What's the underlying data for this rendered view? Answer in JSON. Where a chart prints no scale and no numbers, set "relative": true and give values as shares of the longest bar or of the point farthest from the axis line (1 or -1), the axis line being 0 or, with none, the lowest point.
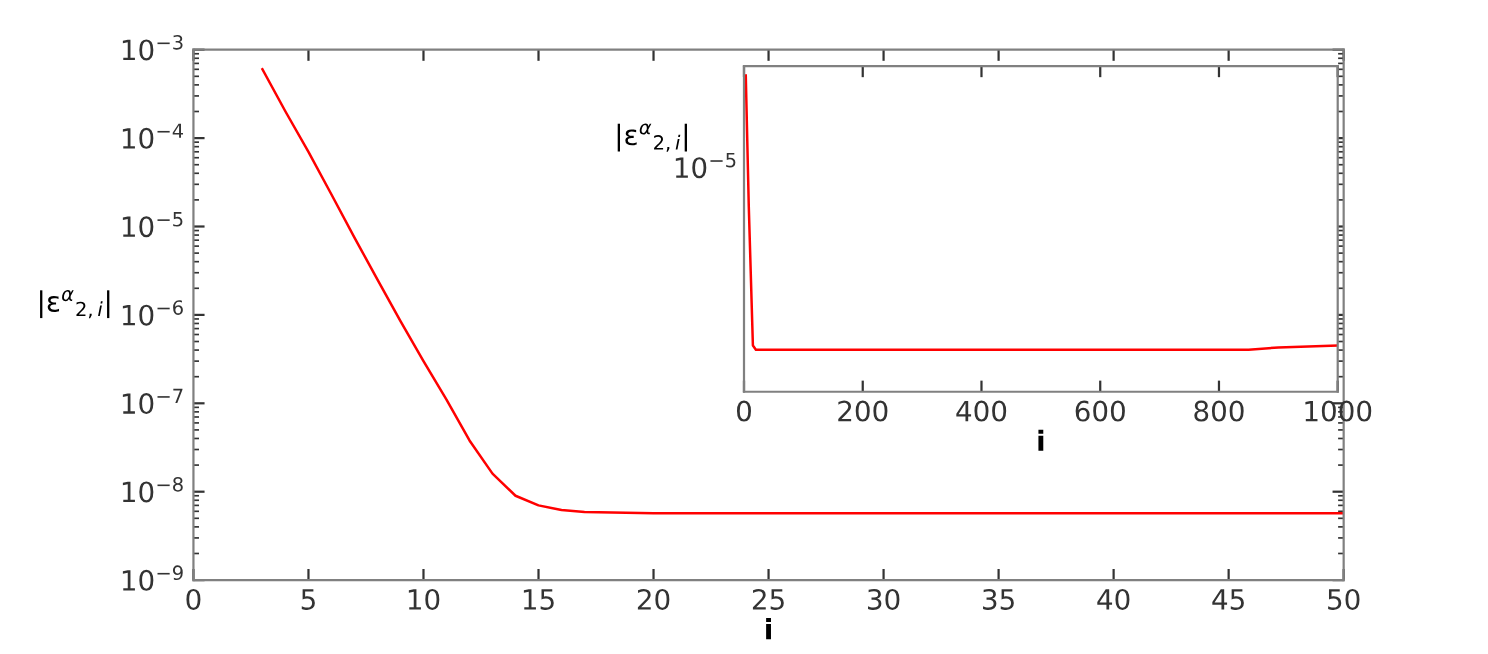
{
  "chart_data": [
    {
      "type": "line",
      "xlabel": "i",
      "ylabel": "|ε$^{α}$$_{2,i}$|",
      "log": "y",
      "xlim": [
        0,
        50
      ],
      "xticks": [
        0,
        5,
        10,
        15,
        20,
        25,
        30,
        35,
        40,
        45,
        50
      ],
      "ylim": [
        1e-09,
        0.001
      ],
      "yticks": [
        {
          "value": 1e-09,
          "label": "10$^{−9}$"
        },
        {
          "value": 1e-08,
          "label": "10$^{−8}$"
        },
        {
          "value": 1e-07,
          "label": "10$^{−7}$"
        },
        {
          "value": 1e-06,
          "label": "10$^{−6}$"
        },
        {
          "value": 1e-05,
          "label": "10$^{−5}$"
        },
        {
          "value": 0.0001,
          "label": "10$^{−4}$"
        },
        {
          "value": 0.001,
          "label": "10$^{−3}$"
        }
      ],
      "series": [
        {
          "color": "#ff0000",
          "x": [
            3,
            4,
            5,
            6,
            7,
            8,
            9,
            10,
            11,
            12,
            13,
            14,
            15,
            16,
            17,
            20,
            30,
            40,
            50
          ],
          "values": [
            0.0006,
            0.0002,
            7e-05,
            2.3e-05,
            7.5e-06,
            2.5e-06,
            8.5e-07,
            3e-07,
            1.1e-07,
            3.8e-08,
            1.6e-08,
            9e-09,
            7e-09,
            6.2e-09,
            5.9e-09,
            5.7e-09,
            5.7e-09,
            5.7e-09,
            5.7e-09
          ]
        }
      ]
    },
    {
      "type": "line",
      "xlabel": "i",
      "ylabel": "|ε$^{α}$$_{2,i}$|",
      "relative": true,
      "xlim": [
        0,
        1000
      ],
      "xticks": [
        0,
        200,
        400,
        600,
        800,
        1000
      ],
      "annotations": [
        "10$^{−5}$"
      ],
      "series": [
        {
          "color": "#ff0000",
          "x": [
            3,
            8,
            15,
            20,
            100,
            400,
            700,
            850,
            900,
            1000
          ],
          "values": [
            1,
            0.59,
            0.146,
            0.133,
            0.133,
            0.133,
            0.133,
            0.133,
            0.14,
            0.146
          ]
        }
      ]
    }
  ]
}
